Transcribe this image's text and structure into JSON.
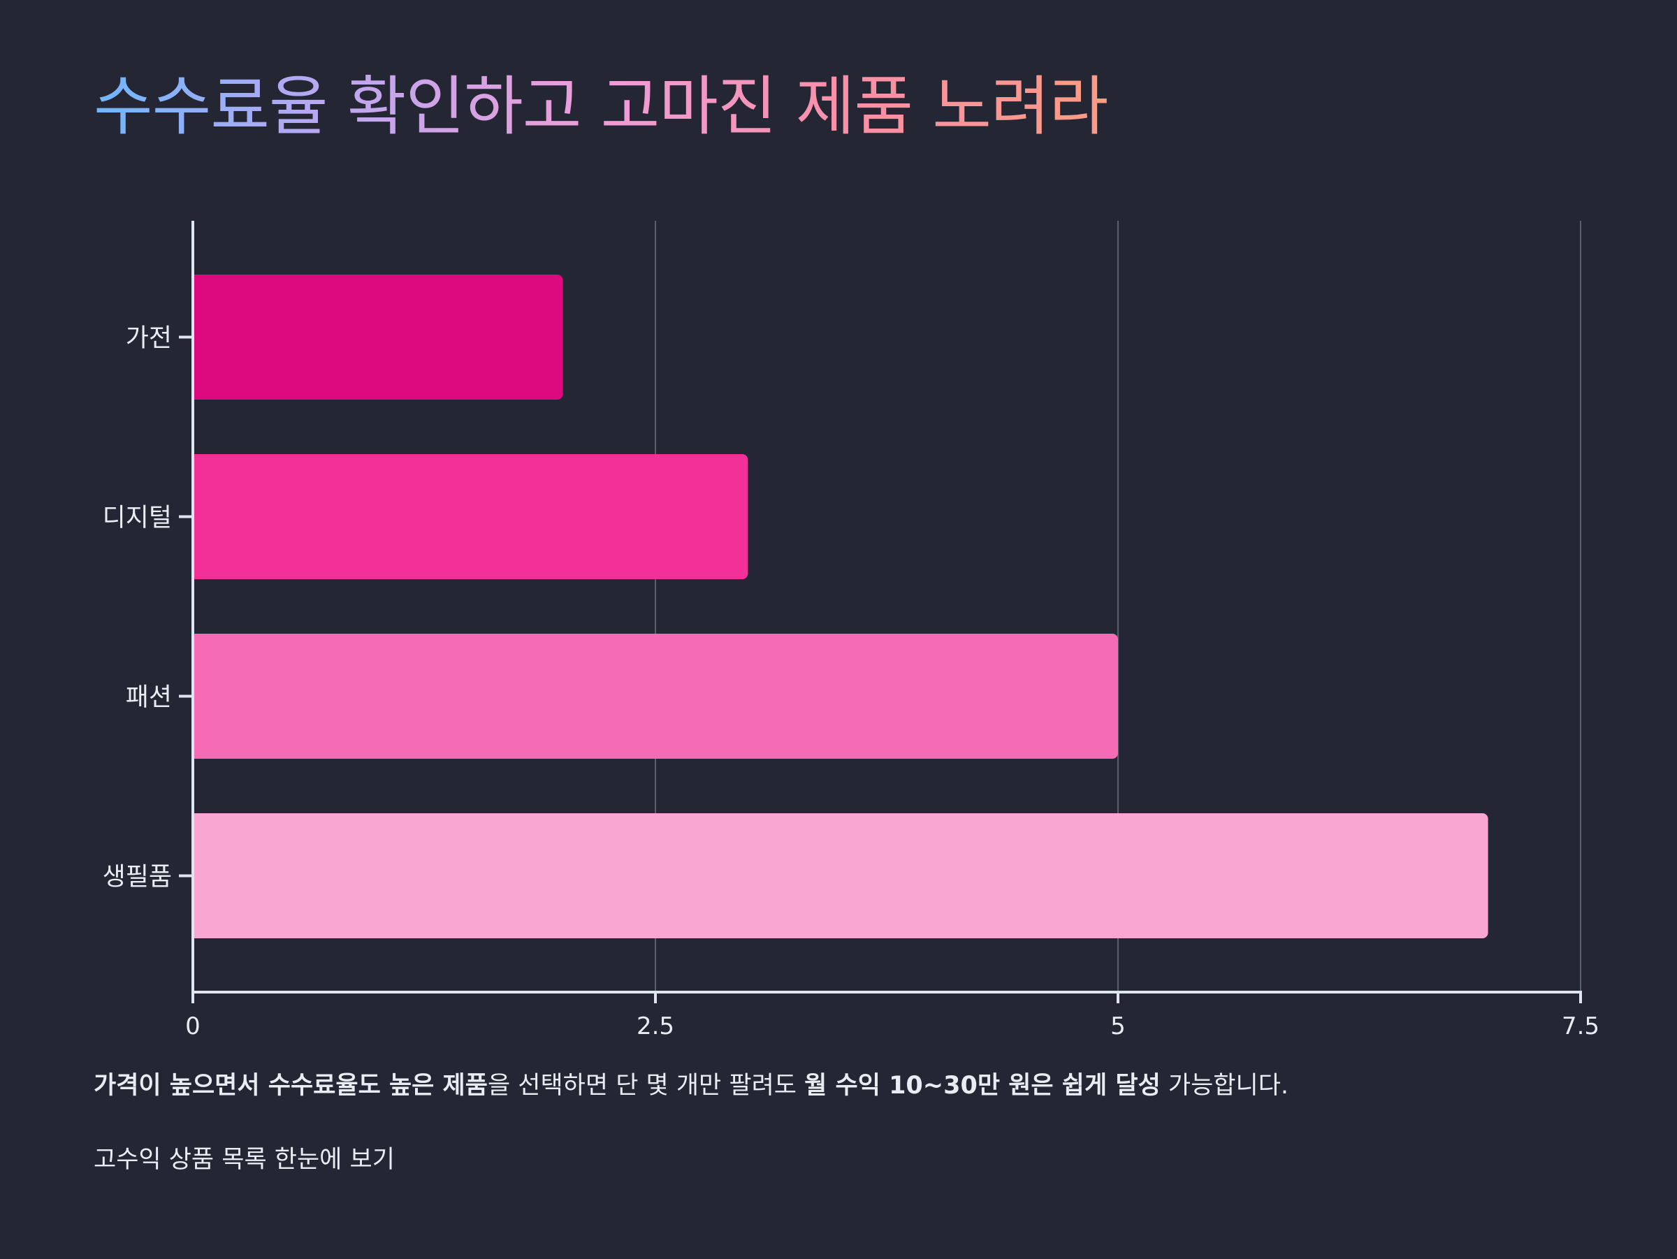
{
  "title": "수수료율 확인하고 고마진 제품 노려라",
  "chart_data": {
    "type": "bar",
    "orientation": "horizontal",
    "categories": [
      "가전",
      "디지털",
      "패션",
      "생필품"
    ],
    "values": [
      2,
      3,
      5,
      7
    ],
    "colors": [
      "#dc0a7e",
      "#f32f98",
      "#f66bb5",
      "#f9a6d2"
    ],
    "title": "",
    "xlabel": "",
    "ylabel": "",
    "xlim": [
      0,
      7.5
    ],
    "xticks": [
      0,
      2.5,
      5,
      7.5
    ],
    "xtick_labels": [
      "0",
      "2.5",
      "5",
      "7.5"
    ],
    "grid": "vertical",
    "legend": "none"
  },
  "description": {
    "part1_bold": "가격이 높으면서 수수료율도 높은 제품",
    "part2": "을 선택하면 단 몇 개만 팔려도 ",
    "part3_bold": "월 수익 10~30만 원은 쉽게 달성",
    "part4": " 가능합니다."
  },
  "link_text": "고수익 상품 목록 한눈에 보기",
  "colors": {
    "background": "#242633",
    "text": "#e9ecf3",
    "axis": "#dfe6f0",
    "grid": "#5b5e69"
  }
}
